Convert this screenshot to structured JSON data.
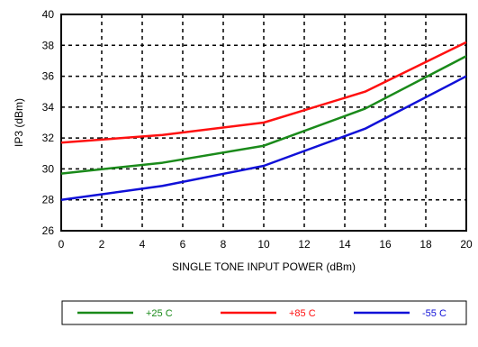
{
  "chart_data": {
    "type": "line",
    "xlabel": "SINGLE TONE INPUT POWER (dBm)",
    "ylabel": "IP3 (dBm)",
    "xlim": [
      0,
      20
    ],
    "ylim": [
      26,
      40
    ],
    "xticks": [
      0,
      2,
      4,
      6,
      8,
      10,
      12,
      14,
      16,
      18,
      20
    ],
    "yticks": [
      26,
      28,
      30,
      32,
      34,
      36,
      38,
      40
    ],
    "grid": true,
    "grid_style": "dotted",
    "legend_position": "bottom",
    "series": [
      {
        "name": "+25 C",
        "color": "#1a8a1a",
        "x": [
          0,
          5,
          10,
          15,
          20
        ],
        "y": [
          29.7,
          30.4,
          31.5,
          33.9,
          37.3
        ]
      },
      {
        "name": "+85 C",
        "color": "#ff1010",
        "x": [
          0,
          5,
          10,
          15,
          20
        ],
        "y": [
          31.7,
          32.2,
          33.0,
          35.0,
          38.2
        ]
      },
      {
        "name": "-55 C",
        "color": "#1010d8",
        "x": [
          0,
          5,
          10,
          15,
          20
        ],
        "y": [
          28.0,
          28.9,
          30.2,
          32.6,
          36.0
        ]
      }
    ]
  }
}
